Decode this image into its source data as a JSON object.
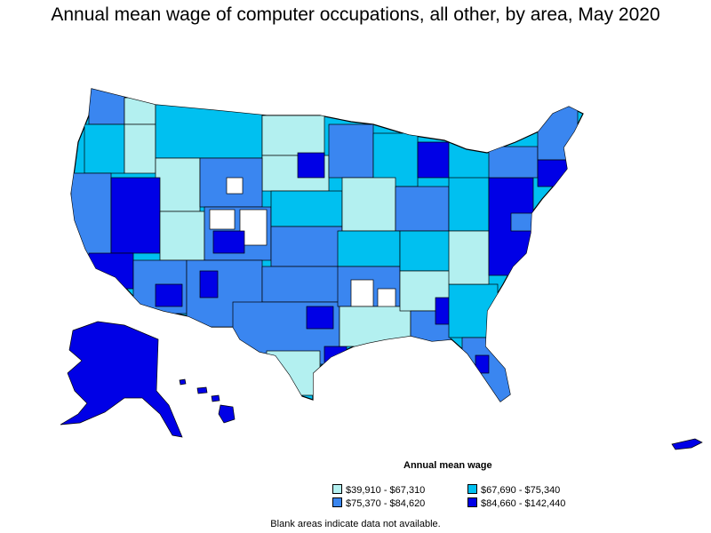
{
  "title": "Annual mean wage of computer occupations, all other, by area, May 2020",
  "legend": {
    "title": "Annual mean wage",
    "items": [
      {
        "label": "$39,910 - $67,310",
        "color": "#b3f0f0"
      },
      {
        "label": "$67,690 - $75,340",
        "color": "#00c0f0"
      },
      {
        "label": "$75,370 - $84,620",
        "color": "#3a86f0"
      },
      {
        "label": "$84,660 - $142,440",
        "color": "#0000e6"
      }
    ]
  },
  "note": "Blank areas indicate data not available.",
  "colors": {
    "border": "#000000",
    "no_data": "#ffffff"
  }
}
